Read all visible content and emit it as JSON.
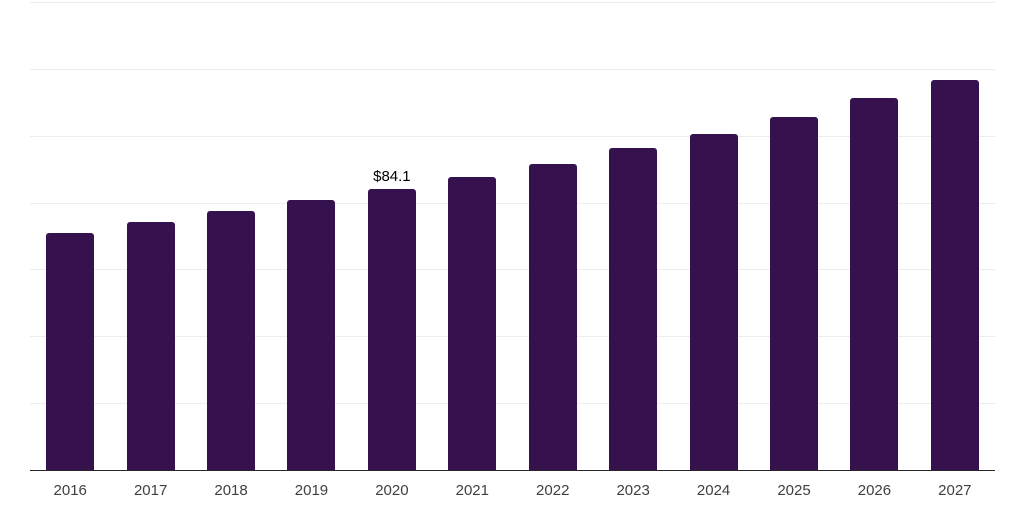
{
  "colors": {
    "bar": "#35124d",
    "gridline": "#ececec",
    "axis": "#262626",
    "data_label": "#000000",
    "tick_label": "#404040",
    "background": "#ffffff"
  },
  "chart_data": {
    "type": "bar",
    "title": "",
    "xlabel": "",
    "ylabel": "",
    "ylim": [
      0,
      140
    ],
    "gridline_step": 20,
    "grid": true,
    "y_axis_labels_visible": false,
    "legend": "none",
    "categories": [
      "2016",
      "2017",
      "2018",
      "2019",
      "2020",
      "2021",
      "2022",
      "2023",
      "2024",
      "2025",
      "2026",
      "2027"
    ],
    "values": [
      71.0,
      74.1,
      77.4,
      80.8,
      84.1,
      87.8,
      91.5,
      96.2,
      100.5,
      105.6,
      111.3,
      116.6
    ],
    "points": [
      {
        "year": "2016",
        "value": 71.0,
        "label": ""
      },
      {
        "year": "2017",
        "value": 74.1,
        "label": ""
      },
      {
        "year": "2018",
        "value": 77.4,
        "label": ""
      },
      {
        "year": "2019",
        "value": 80.8,
        "label": ""
      },
      {
        "year": "2020",
        "value": 84.1,
        "label": "$84.1"
      },
      {
        "year": "2021",
        "value": 87.8,
        "label": ""
      },
      {
        "year": "2022",
        "value": 91.5,
        "label": ""
      },
      {
        "year": "2023",
        "value": 96.2,
        "label": ""
      },
      {
        "year": "2024",
        "value": 100.5,
        "label": ""
      },
      {
        "year": "2025",
        "value": 105.6,
        "label": ""
      },
      {
        "year": "2026",
        "value": 111.3,
        "label": ""
      },
      {
        "year": "2027",
        "value": 116.6,
        "label": ""
      }
    ]
  }
}
